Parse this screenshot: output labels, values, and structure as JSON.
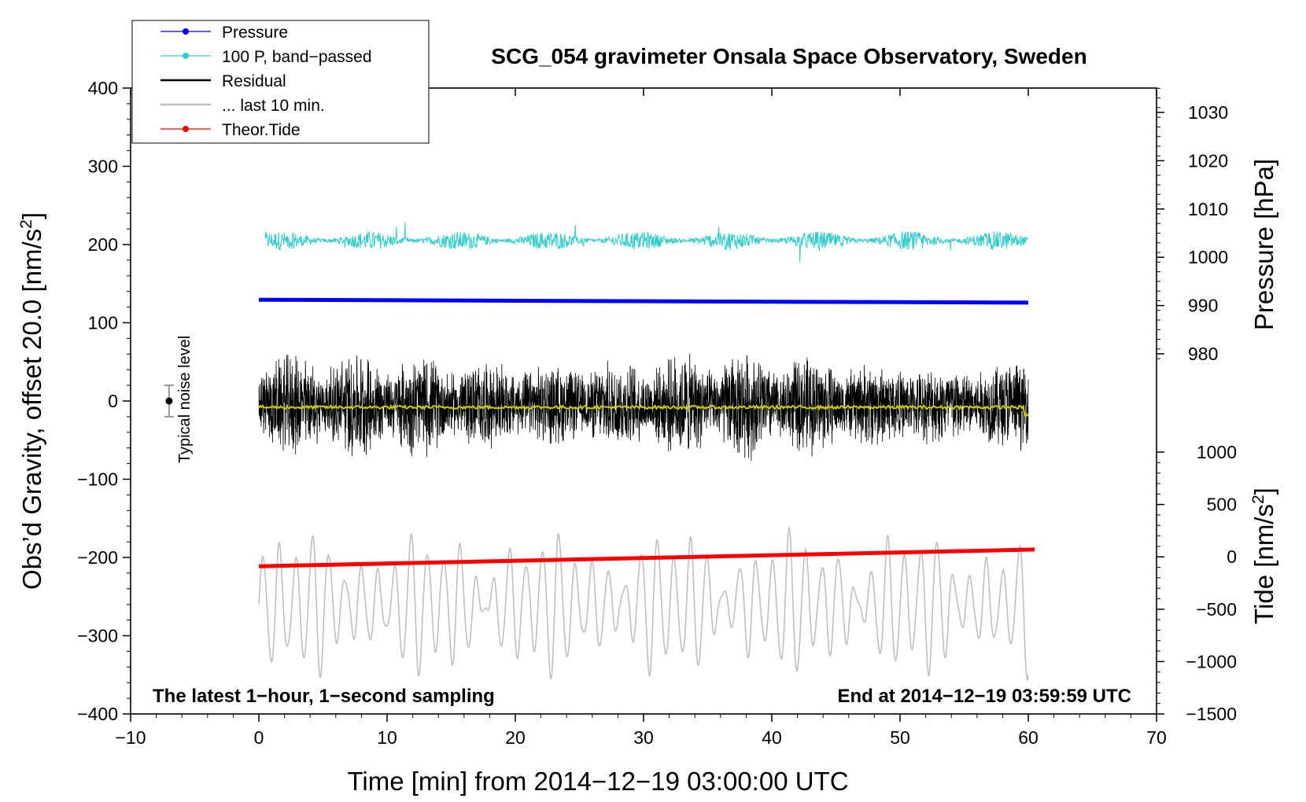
{
  "chart_data": {
    "type": "line",
    "title": "SCG_054 gravimeter Onsala Space Observatory, Sweden",
    "xlabel": "Time [min] from 2014−12−19 03:00:00 UTC",
    "ylabel_left_main": "Obs’d Gravity, offset 20.0 [nm/s",
    "ylabel_left_sup": "2",
    "ylabel_left_end": "]",
    "ylabel_right_pressure": "Pressure [hPa]",
    "ylabel_right_tide_main": "Tide [nm/s",
    "ylabel_right_tide_sup": "2",
    "ylabel_right_tide_end": "]",
    "xlim": [
      -10,
      70
    ],
    "ylim": [
      -400,
      400
    ],
    "pressure_ylim": [
      979.5,
      1033
    ],
    "tide_ylim": [
      -1500,
      1100
    ],
    "x_ticks": [
      -10,
      0,
      10,
      20,
      30,
      40,
      50,
      60,
      70
    ],
    "x_tick_labels": [
      "−10",
      "0",
      "10",
      "20",
      "30",
      "40",
      "50",
      "60",
      "70"
    ],
    "y_ticks": [
      400,
      300,
      200,
      100,
      0,
      -100,
      -200,
      -300,
      -400
    ],
    "y_tick_labels": [
      "400",
      "300",
      "200",
      "100",
      "0",
      "−100",
      "−200",
      "−300",
      "−400"
    ],
    "pressure_ticks": [
      1030,
      1020,
      1010,
      1000,
      990,
      980
    ],
    "pressure_tick_labels": [
      "1030",
      "1020",
      "1010",
      "1000",
      "990",
      "980"
    ],
    "tide_ticks": [
      1000,
      500,
      0,
      -500,
      -1000,
      -1500
    ],
    "tide_tick_labels": [
      "1000",
      "500",
      "0",
      "−500",
      "−1000",
      "−1500"
    ],
    "legend": [
      {
        "label": "Pressure",
        "color": "#0000ff",
        "marker": true
      },
      {
        "label": "100 P, band−passed",
        "color": "#33cccc",
        "marker": true
      },
      {
        "label": "Residual",
        "color": "#000000",
        "marker": false
      },
      {
        "label": "... last 10 min.",
        "color": "#bfbfbf",
        "marker": false
      },
      {
        "label": "Theor.Tide",
        "color": "#ff0000",
        "marker": true
      }
    ],
    "series": [
      {
        "name": "Pressure",
        "axis": "pressure",
        "color": "#0000ff",
        "x": [
          0,
          20,
          40,
          60
        ],
        "values": [
          991.2,
          991.0,
          990.8,
          990.6
        ]
      },
      {
        "name": "100 P, band−passed",
        "axis": "left",
        "color": "#33cccc",
        "center": 205,
        "amplitude": 12,
        "x_range": [
          0.5,
          60
        ]
      },
      {
        "name": "Residual",
        "axis": "left",
        "color": "#000000",
        "center": -5,
        "amplitude": 75,
        "x_range": [
          0,
          60
        ]
      },
      {
        "name": "... last 10 min.",
        "axis": "left",
        "color": "#bfbfbf",
        "center": -260,
        "amplitude": 75,
        "x_range": [
          0,
          60
        ]
      },
      {
        "name": "Theor.Tide",
        "axis": "tide",
        "color": "#ff0000",
        "x": [
          0,
          60.5
        ],
        "values": [
          -90,
          70
        ]
      },
      {
        "name": "smoothed",
        "axis": "left",
        "color": "#cccc00",
        "center": -8,
        "amplitude": 2,
        "x_range": [
          0,
          60
        ]
      }
    ],
    "noise_bar": {
      "label": "Typical noise level",
      "x": -7,
      "y": 0,
      "error": 20
    },
    "annotations": [
      {
        "text": "The latest 1−hour, 1−second sampling",
        "position": "bottom-left"
      },
      {
        "text": "End at 2014−12−19 03:59:59 UTC",
        "position": "bottom-right"
      }
    ]
  }
}
